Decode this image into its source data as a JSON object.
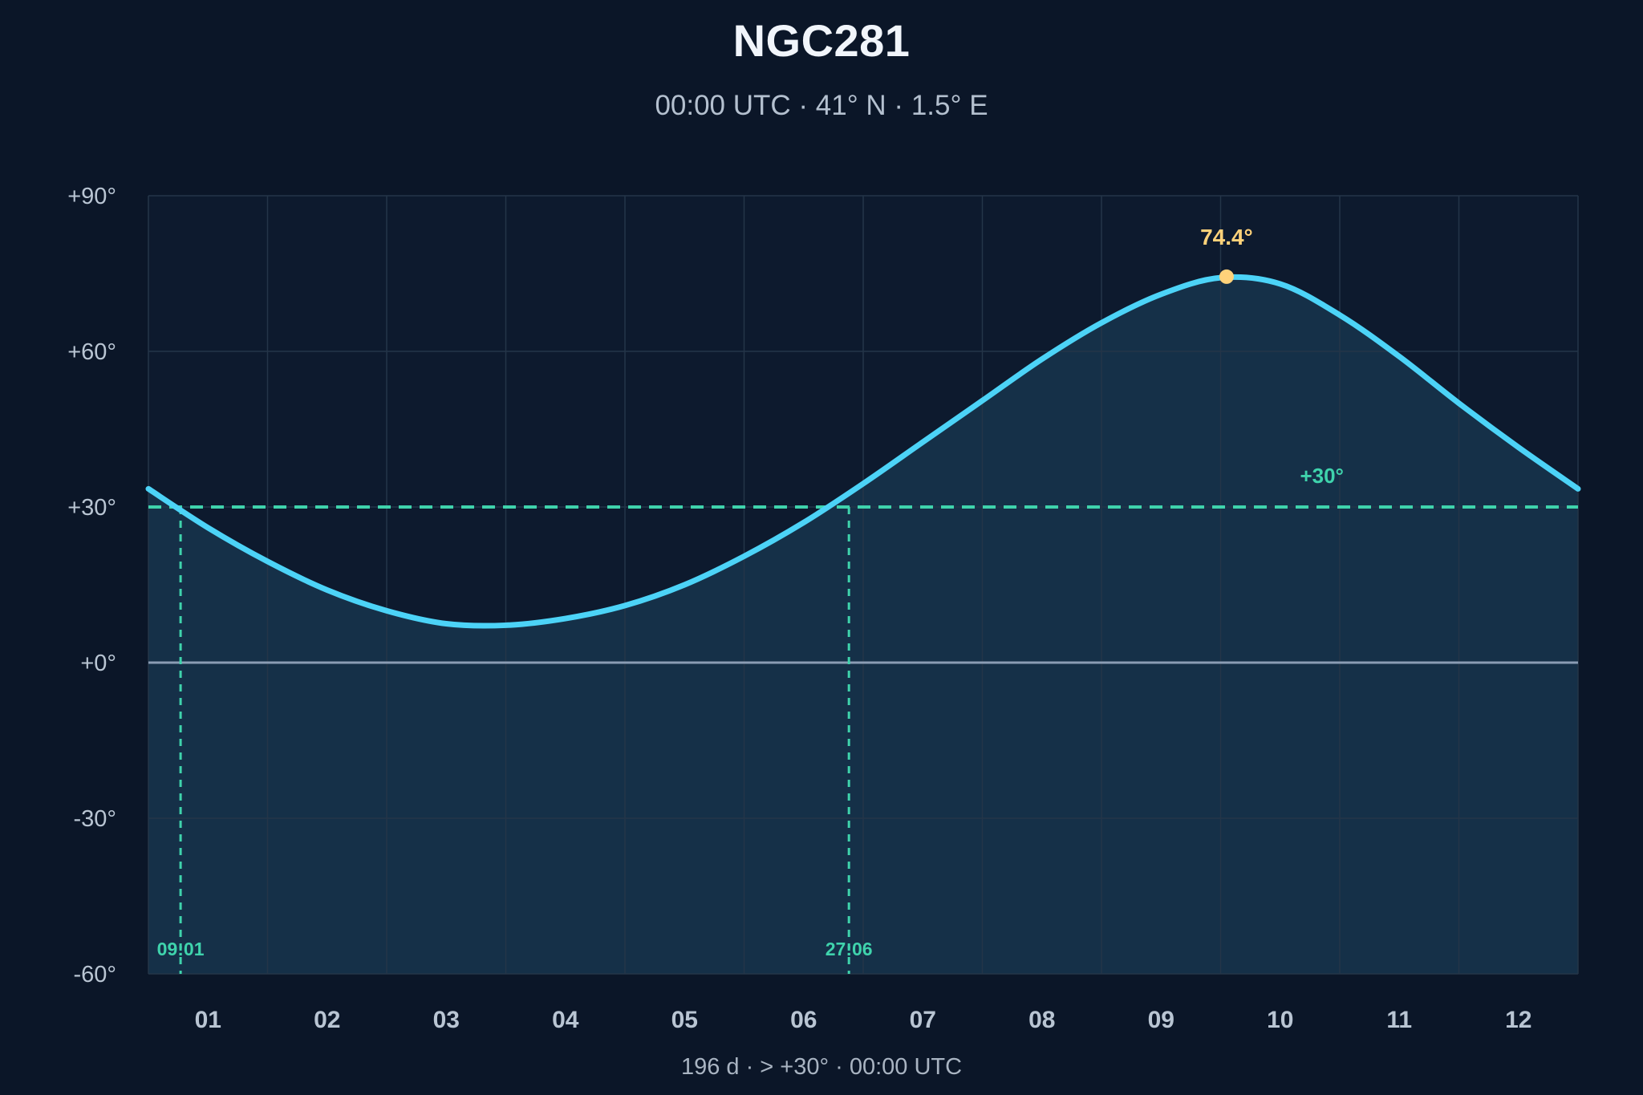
{
  "header": {
    "title": "NGC281",
    "subtitle": "00:00 UTC · 41° N · 1.5° E"
  },
  "footer": {
    "text": "196 d  ·  > +30°  ·  00:00 UTC"
  },
  "colors": {
    "background": "#0b1628",
    "curve": "#4cd3f7",
    "area_fill": "#16314a",
    "threshold": "#3fd3ac",
    "peak": "#ffd27a",
    "zero_line": "#8a9db5",
    "grid": "#243548",
    "tick_label": "#b9c5d3"
  },
  "chart_data": {
    "type": "area",
    "title": "NGC281",
    "subtitle": "00:00 UTC · 41° N · 1.5° E",
    "xlabel": "",
    "ylabel": "",
    "x_unit": "month",
    "xlim": [
      0.5,
      12.5
    ],
    "ylim": [
      -60,
      90
    ],
    "x_ticks": [
      1,
      2,
      3,
      4,
      5,
      6,
      7,
      8,
      9,
      10,
      11,
      12
    ],
    "x_tick_labels": [
      "01",
      "02",
      "03",
      "04",
      "05",
      "06",
      "07",
      "08",
      "09",
      "10",
      "11",
      "12"
    ],
    "y_ticks": [
      -60,
      -30,
      0,
      30,
      60,
      90
    ],
    "y_tick_labels": [
      "-60°",
      "-30°",
      "+0°",
      "+30°",
      "+60°",
      "+90°"
    ],
    "grid": true,
    "series": [
      {
        "values_x": [
          0.5,
          1.0,
          1.5,
          2.0,
          2.5,
          3.0,
          3.5,
          4.0,
          4.5,
          5.0,
          5.5,
          6.0,
          6.5,
          7.0,
          7.5,
          8.0,
          8.5,
          9.0,
          9.5,
          10.0,
          10.5,
          11.0,
          11.5,
          12.0,
          12.5
        ],
        "values_y": [
          33.5,
          26.0,
          19.5,
          14.0,
          10.0,
          7.5,
          7.2,
          8.5,
          11.0,
          15.0,
          20.5,
          27.0,
          34.5,
          42.5,
          50.5,
          58.5,
          65.5,
          71.0,
          74.2,
          73.0,
          67.0,
          59.0,
          50.0,
          41.5,
          33.5
        ]
      }
    ],
    "peak": {
      "x": 9.55,
      "y": 74.4,
      "label": "74.4°"
    },
    "threshold": {
      "y": 30,
      "label": "+30°"
    },
    "crossings": [
      {
        "x": 0.77,
        "label": "09:01"
      },
      {
        "x": 6.38,
        "label": "27:06"
      }
    ]
  }
}
